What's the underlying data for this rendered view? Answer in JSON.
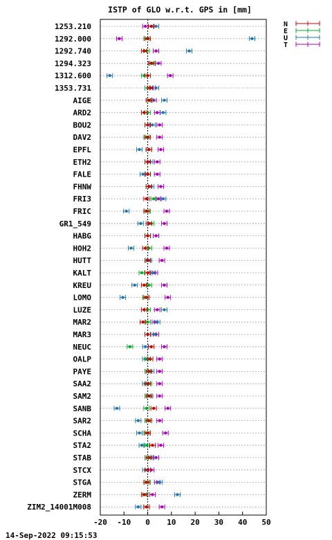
{
  "chart_data": {
    "type": "scatter",
    "title": "ISTP of GLO w.r.t. GPS in [mm]",
    "timestamp": "14-Sep-2022 09:15:53",
    "xlim": [
      -20,
      50
    ],
    "xticks": [
      -20,
      -10,
      0,
      10,
      20,
      30,
      40,
      50
    ],
    "grid": "horizontal dotted per station, dotted vertical zero line",
    "legend_position": "top-right outside",
    "series": [
      {
        "name": "N",
        "color": "#d00000"
      },
      {
        "name": "E",
        "color": "#00b020"
      },
      {
        "name": "U",
        "color": "#1f77b4"
      },
      {
        "name": "T",
        "color": "#b000c0"
      }
    ],
    "stations": [
      "1253.210",
      "1292.000",
      "1292.740",
      "1294.323",
      "1312.600",
      "1353.731",
      "AIGE",
      "ARD2",
      "BOU2",
      "DAV2",
      "EPFL",
      "ETH2",
      "FALE",
      "FHNW",
      "FRI3",
      "FRIC",
      "GR1_549",
      "HABG",
      "HOH2",
      "HUTT",
      "KALT",
      "KREU",
      "LOMO",
      "LUZE",
      "MAR2",
      "MAR3",
      "NEUC",
      "OALP",
      "PAYE",
      "SAA2",
      "SAM2",
      "SANB",
      "SAR2",
      "SCHA",
      "STA2",
      "STAB",
      "STCX",
      "STGA",
      "ZERM",
      "ZIM2_14001M008"
    ],
    "values": {
      "N": [
        1.5,
        0,
        -1.5,
        1.5,
        0,
        1,
        0.5,
        -1.5,
        0,
        0,
        0.5,
        0,
        0,
        0.5,
        -0.5,
        -0.5,
        0.5,
        0,
        -1,
        0,
        0,
        -1.5,
        -0.5,
        -1.5,
        -2,
        0,
        1.5,
        1,
        0.5,
        0,
        0.5,
        2.5,
        0.5,
        0,
        2,
        0.5,
        0,
        -0.5,
        -1.5,
        -0.5
      ],
      "E": [
        1.5,
        -0.5,
        -0.5,
        2,
        -1.5,
        0,
        1,
        0,
        0,
        -0.5,
        0.5,
        0,
        0,
        0.5,
        2.5,
        0,
        1.5,
        0,
        0.5,
        0,
        -2.5,
        0.5,
        -1,
        0,
        0,
        0,
        -7.5,
        0,
        0,
        0.5,
        0,
        -0.5,
        0,
        -0.5,
        -0.5,
        0,
        0,
        0,
        -1,
        -0.5
      ],
      "U": [
        3.5,
        44,
        17.5,
        2,
        -16,
        3.5,
        7,
        6.5,
        2,
        0,
        -3.5,
        1,
        -2,
        1.5,
        6.5,
        -9,
        -3,
        0,
        -7,
        0.5,
        2,
        -5.5,
        -10.5,
        7,
        4,
        2.5,
        -1,
        -1,
        1.5,
        -1,
        1,
        -13,
        -4,
        -3.5,
        -2.5,
        1.5,
        -1,
        5,
        12.5,
        -4
      ],
      "T": [
        -1,
        -12,
        3.5,
        4.5,
        9.5,
        2,
        2.5,
        4,
        5,
        5,
        5.5,
        4,
        4,
        5.5,
        4.5,
        8,
        7,
        3.5,
        8,
        6,
        3,
        7,
        8.5,
        4,
        3,
        3.5,
        7,
        5,
        5,
        5,
        5,
        8.5,
        5,
        7.5,
        5.5,
        3.5,
        1.5,
        4,
        2,
        6
      ]
    }
  }
}
